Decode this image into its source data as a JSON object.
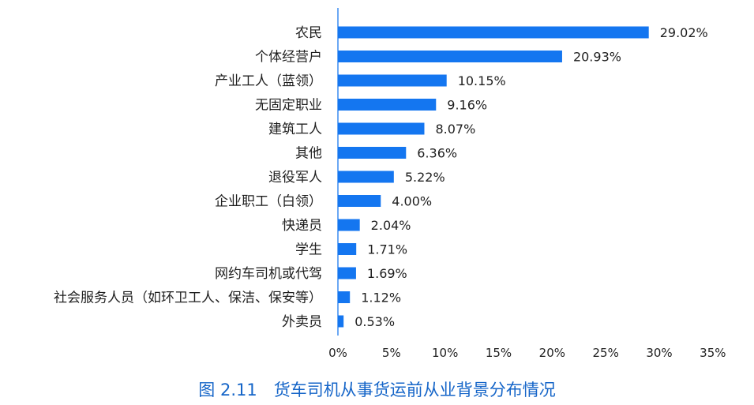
{
  "chart_data": {
    "type": "bar",
    "orientation": "horizontal",
    "categories": [
      "农民",
      "个体经营户",
      "产业工人（蓝领）",
      "无固定职业",
      "建筑工人",
      "其他",
      "退役军人",
      "企业职工（白领）",
      "快递员",
      "学生",
      "网约车司机或代驾",
      "社会服务人员（如环卫工人、保洁、保安等）",
      "外卖员"
    ],
    "values": [
      29.02,
      20.93,
      10.15,
      9.16,
      8.07,
      6.36,
      5.22,
      4.0,
      2.04,
      1.71,
      1.69,
      1.12,
      0.53
    ],
    "value_labels": [
      "29.02%",
      "20.93%",
      "10.15%",
      "9.16%",
      "8.07%",
      "6.36%",
      "5.22%",
      "4.00%",
      "2.04%",
      "1.71%",
      "1.69%",
      "1.12%",
      "0.53%"
    ],
    "xticks": [
      0,
      5,
      10,
      15,
      20,
      25,
      30,
      35
    ],
    "xtick_labels": [
      "0%",
      "5%",
      "10%",
      "15%",
      "20%",
      "25%",
      "30%",
      "35%"
    ],
    "xlim": [
      0,
      35
    ],
    "title": "图 2.11　货车司机从事货运前从业背景分布情况",
    "xlabel": "",
    "ylabel": "",
    "grid": false,
    "bar_color": "#1476f0"
  }
}
